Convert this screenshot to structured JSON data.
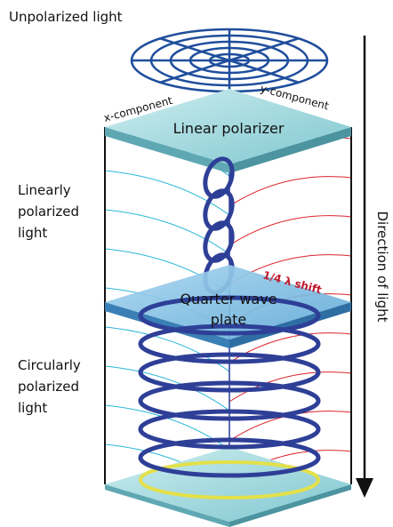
{
  "labels": {
    "unpolarized": "Unpolarized light",
    "x_component": "x-component",
    "y_component": "y-component",
    "linear_polarizer": "Linear polarizer",
    "linearly_polarized": [
      "Linearly",
      "polarized",
      "light"
    ],
    "shift": "1/4 λ shift",
    "quarter_wave_plate": [
      "Quarter wave",
      "plate"
    ],
    "circularly_polarized": [
      "Circularly",
      "polarized",
      "light"
    ],
    "direction": "Direction of light"
  }
}
